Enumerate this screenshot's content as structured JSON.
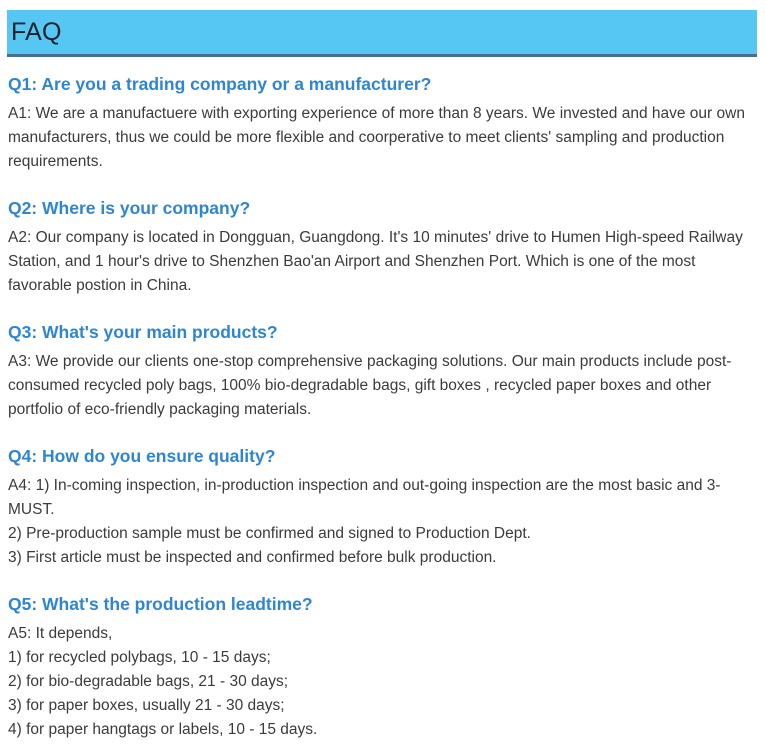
{
  "header": {
    "title": "FAQ"
  },
  "colors": {
    "header_bg": "#56C6F3",
    "header_border": "#46708E",
    "question_blue": "#2E86D2",
    "body_text": "#3B3B3B"
  },
  "faq": {
    "items": [
      {
        "question": "Q1: Are you a trading company or a manufacturer?",
        "answer_lines": [
          "A1: We are a manufactuere with exporting experience of more than 8 years. We invested and have our own manufacturers, thus we could be more flexible and coorperative to meet clients' sampling and production requirements."
        ]
      },
      {
        "question": "Q2: Where is your company?",
        "answer_lines": [
          "A2: Our company is located in Dongguan, Guangdong. It's 10 minutes' drive to Humen High-speed Railway Station, and 1 hour's drive to Shenzhen Bao'an Airport and Shenzhen Port. Which is one of the most favorable postion in China."
        ]
      },
      {
        "question": "Q3: What's your main products?",
        "answer_lines": [
          "A3: We provide our clients one-stop comprehensive packaging solutions. Our main products include post-consumed recycled poly bags, 100% bio-degradable bags, gift boxes , recycled paper boxes and other portfolio of eco-friendly packaging materials."
        ]
      },
      {
        "question": "Q4: How do you ensure quality?",
        "answer_lines": [
          "A4: 1) In-coming inspection, in-production inspection and out-going inspection are the most basic and 3-MUST.",
          "2) Pre-production sample must be confirmed and signed to Production Dept.",
          "3) First article must be inspected and confirmed before bulk production."
        ]
      },
      {
        "question": "Q5: What's the production leadtime?",
        "answer_lines": [
          "A5: It depends,",
          "1) for recycled polybags, 10 - 15 days;",
          "2) for bio-degradable bags, 21 - 30 days;",
          "3) for paper boxes, usually 21 - 30 days;",
          "4) for paper hangtags or labels, 10 - 15 days."
        ]
      }
    ]
  }
}
